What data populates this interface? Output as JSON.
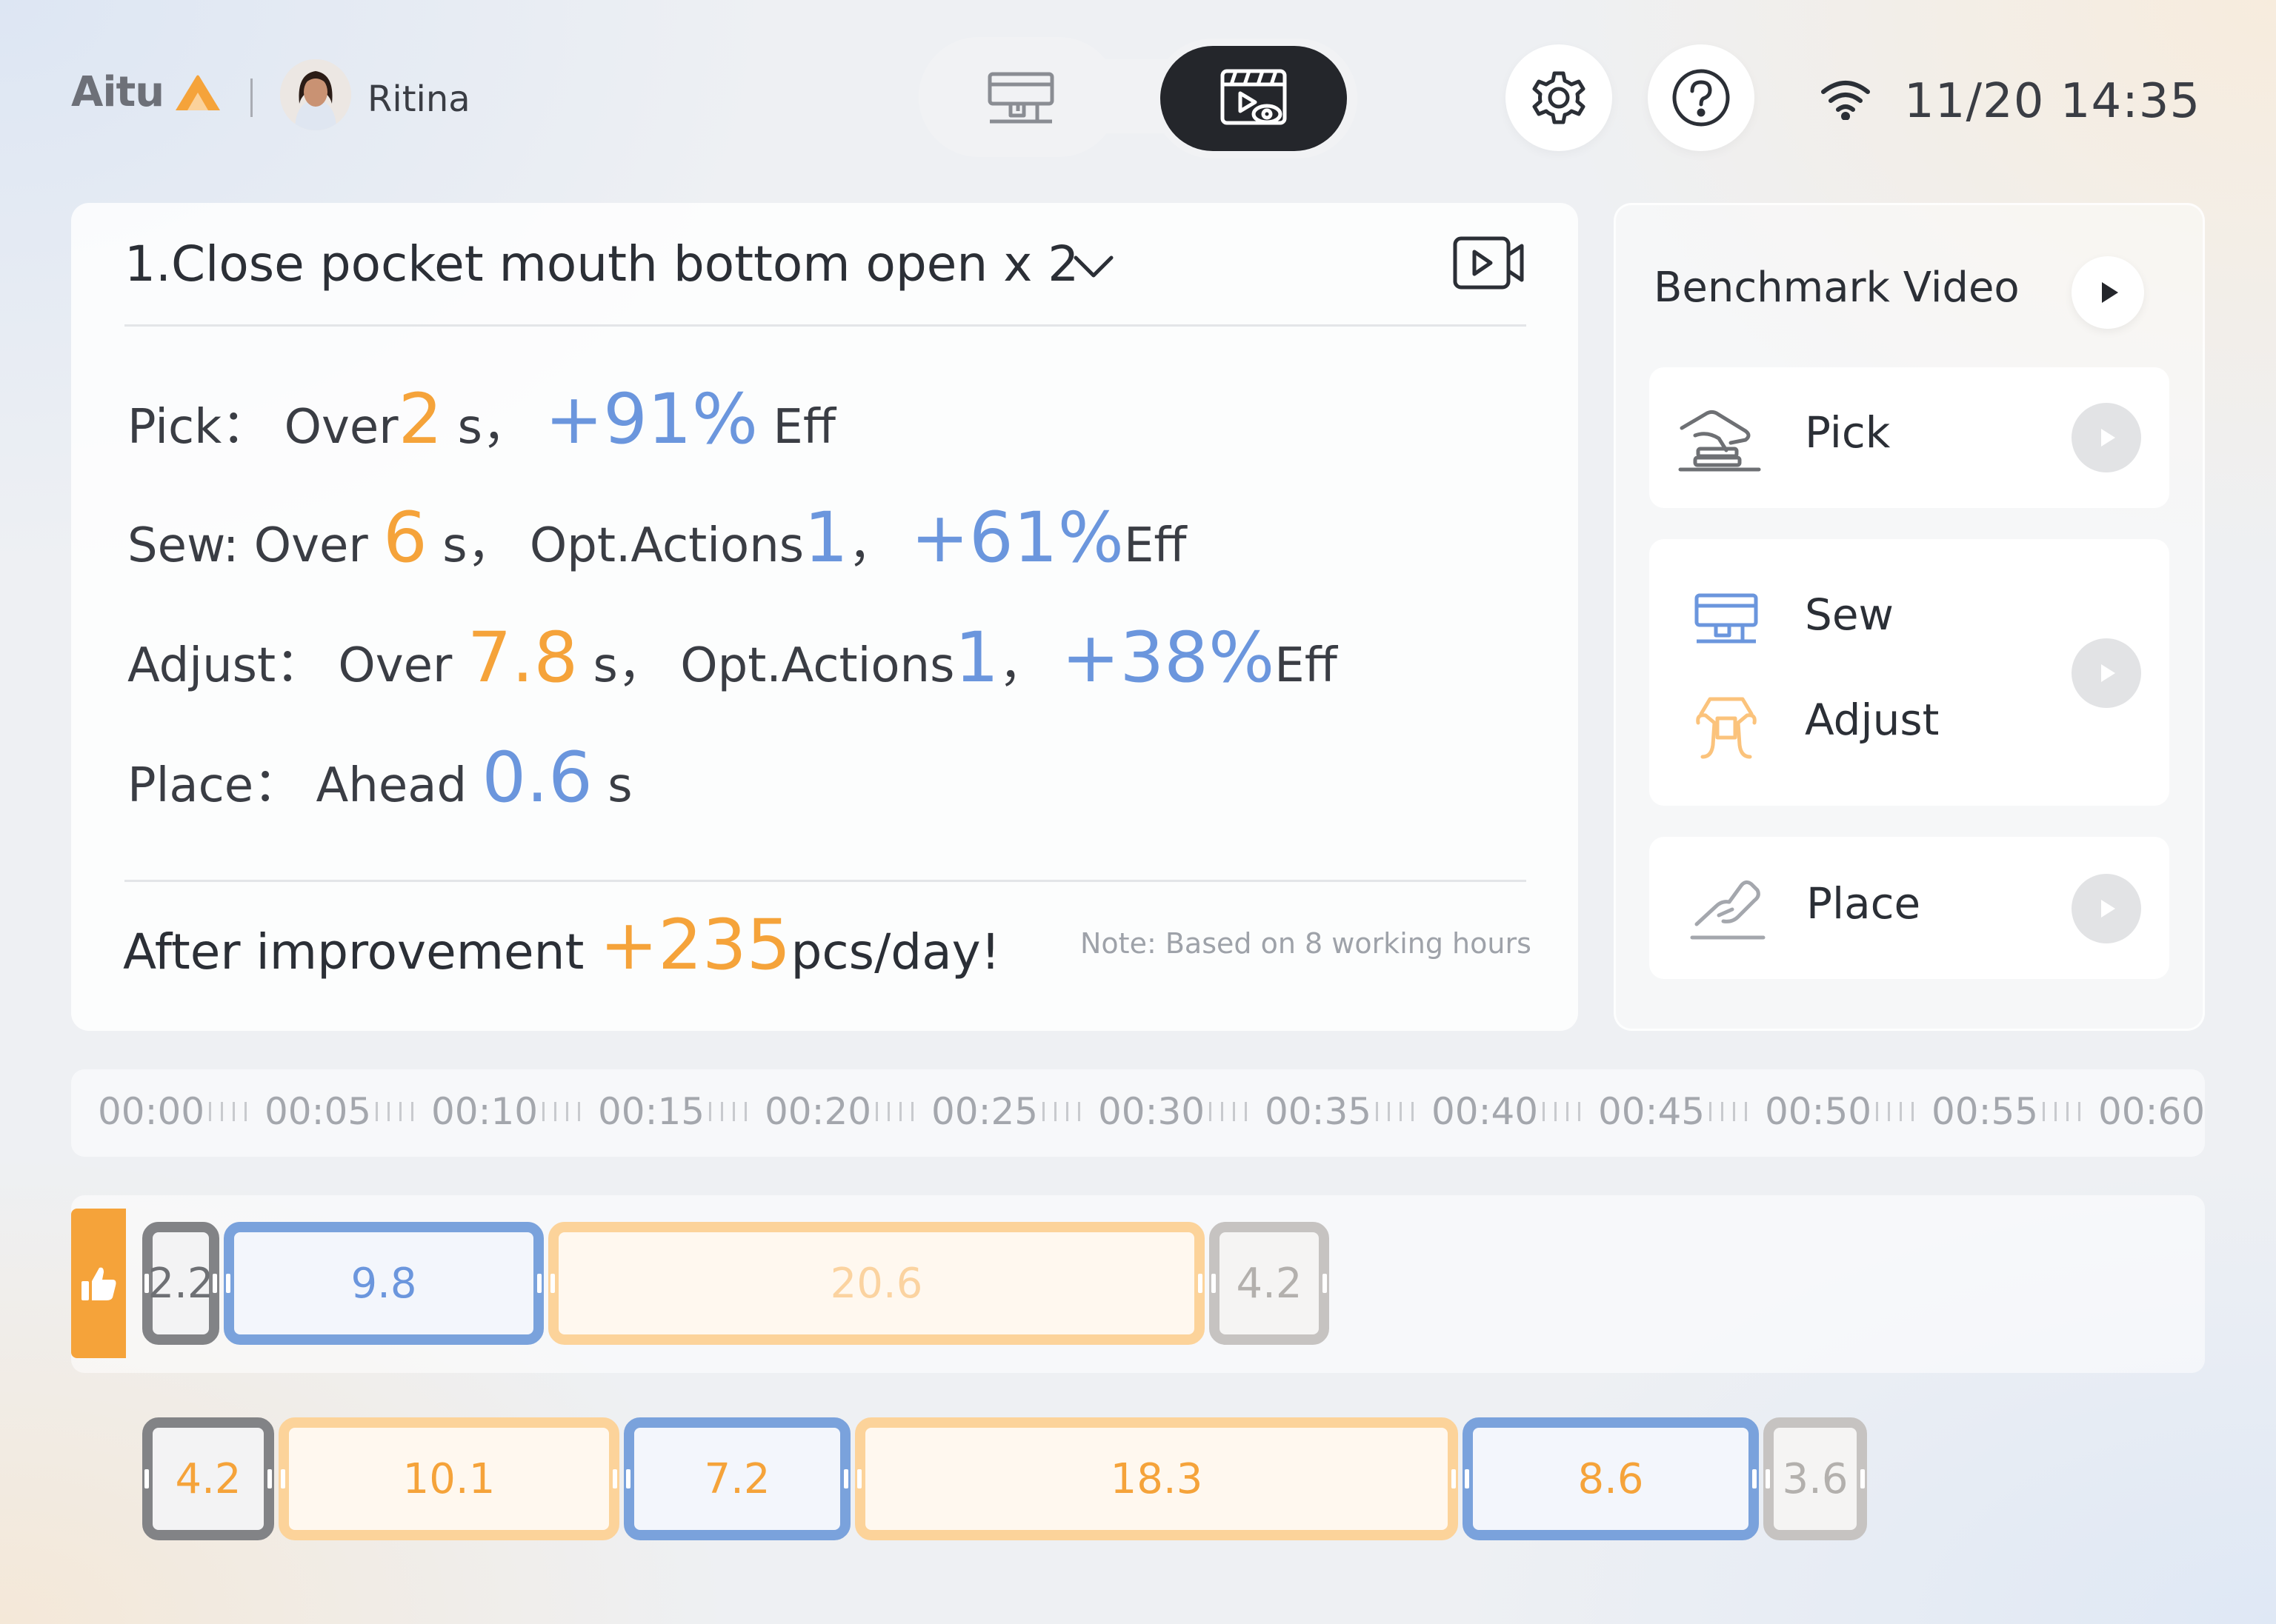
{
  "header": {
    "logo_text": "Aitu",
    "user_name": "Ritina",
    "datetime": "11/20 14:35",
    "icons": {
      "mode_left": "sewing-machine-icon",
      "mode_right": "video-review-icon",
      "settings": "gear-icon",
      "help": "help-icon",
      "network": "wifi-icon"
    }
  },
  "task": {
    "title": "1.Close pocket mouth bottom open x 2",
    "metrics": {
      "pick": {
        "label": "Pick：",
        "over": "Over",
        "over_value": "2",
        "unit": "s，",
        "eff_value": "+91%",
        "eff_label": "Eff"
      },
      "sew": {
        "label": "Sew: Over",
        "over_value": "6",
        "unit": "s，",
        "opt_label": "Opt.Actions",
        "opt_value": "1",
        "sep": "，",
        "eff_value": "+61%",
        "eff_label": "Eff"
      },
      "adjust": {
        "label": "Adjust：",
        "over": "Over",
        "over_value": "7.8",
        "unit": "s，",
        "opt_label": "Opt.Actions",
        "opt_value": "1",
        "sep": "，",
        "eff_value": "+38%",
        "eff_label": "Eff"
      },
      "place": {
        "label": "Place：",
        "ahead": "Ahead",
        "ahead_value": "0.6",
        "unit": "s"
      }
    },
    "improvement": {
      "prefix": "After improvement",
      "value": "+235",
      "suffix": "pcs/day!"
    },
    "note": "Note: Based on 8 working hours"
  },
  "benchmark": {
    "title": "Benchmark Video",
    "items": [
      {
        "label": "Pick",
        "icon": "hand-pick-icon"
      },
      {
        "label": "Sew",
        "icon": "sewing-machine-icon"
      },
      {
        "label": "Adjust",
        "icon": "hands-adjust-icon"
      },
      {
        "label": "Place",
        "icon": "hand-place-icon"
      }
    ]
  },
  "timeline": {
    "ticks": [
      "00:00",
      "00:05",
      "00:10",
      "00:15",
      "00:20",
      "00:25",
      "00:30",
      "00:35",
      "00:40",
      "00:45",
      "00:50",
      "00:55",
      "00:60"
    ],
    "benchmark_track": [
      "2.2",
      "9.8",
      "20.6",
      "4.2"
    ],
    "operator_track": [
      "4.2",
      "10.1",
      "7.2",
      "18.3",
      "8.6",
      "3.6"
    ],
    "colors": {
      "pick": "#828386",
      "sew": "#7aa2dc",
      "adjust": "#fcd39a",
      "place": "#c6c3c1",
      "accent": "#f5a33a"
    }
  }
}
